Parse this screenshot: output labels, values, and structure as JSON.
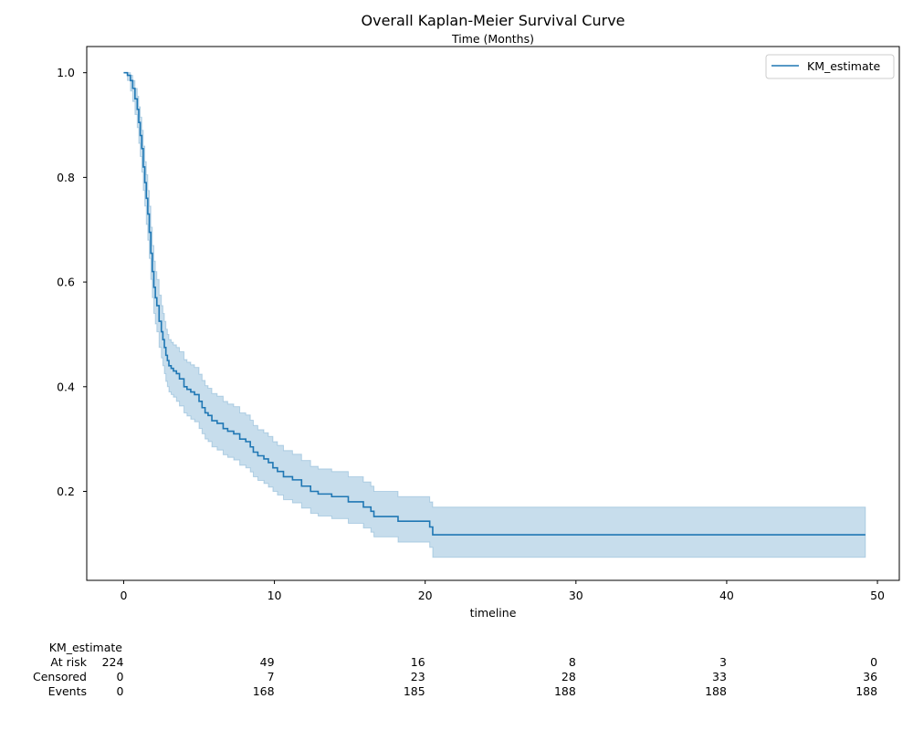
{
  "chart_data": {
    "type": "line",
    "title": "Overall Kaplan-Meier Survival Curve",
    "subtitle": "Time (Months)",
    "xlabel": "timeline",
    "ylabel": "",
    "xlim": [
      -2.45,
      51.45
    ],
    "ylim": [
      0.03,
      1.05
    ],
    "x_ticks": [
      0,
      10,
      20,
      30,
      40,
      50
    ],
    "y_ticks": [
      0.2,
      0.4,
      0.6,
      0.8,
      1.0
    ],
    "x_tick_labels": [
      "0",
      "10",
      "20",
      "30",
      "40",
      "50"
    ],
    "y_tick_labels": [
      "0.2",
      "0.4",
      "0.6",
      "0.8",
      "1.0"
    ],
    "grid": false,
    "legend": {
      "position": "top-right",
      "entries": [
        "KM_estimate"
      ]
    },
    "colors": {
      "line": "#1f77b4",
      "band": "#1f77b4"
    },
    "series": [
      {
        "name": "KM_estimate",
        "interpolation": "step-post",
        "x": [
          0,
          0.25,
          0.45,
          0.6,
          0.75,
          0.9,
          1.0,
          1.1,
          1.2,
          1.3,
          1.4,
          1.5,
          1.6,
          1.7,
          1.8,
          1.9,
          2.0,
          2.1,
          2.2,
          2.35,
          2.5,
          2.6,
          2.7,
          2.8,
          2.9,
          3.0,
          3.15,
          3.3,
          3.5,
          3.7,
          4.0,
          4.2,
          4.45,
          4.7,
          5.0,
          5.2,
          5.4,
          5.6,
          5.85,
          6.2,
          6.6,
          6.9,
          7.3,
          7.7,
          8.1,
          8.4,
          8.6,
          8.9,
          9.3,
          9.6,
          9.9,
          10.2,
          10.6,
          11.2,
          11.8,
          12.4,
          12.9,
          13.8,
          14.9,
          15.9,
          16.4,
          16.6,
          18.2,
          20.3,
          20.5,
          49.2
        ],
        "y": [
          1.0,
          0.995,
          0.985,
          0.97,
          0.95,
          0.93,
          0.905,
          0.88,
          0.855,
          0.82,
          0.79,
          0.76,
          0.73,
          0.695,
          0.655,
          0.62,
          0.59,
          0.57,
          0.555,
          0.525,
          0.505,
          0.49,
          0.475,
          0.46,
          0.45,
          0.44,
          0.435,
          0.43,
          0.425,
          0.415,
          0.4,
          0.395,
          0.39,
          0.385,
          0.372,
          0.36,
          0.35,
          0.345,
          0.335,
          0.33,
          0.32,
          0.315,
          0.31,
          0.3,
          0.295,
          0.285,
          0.275,
          0.268,
          0.262,
          0.255,
          0.245,
          0.238,
          0.228,
          0.222,
          0.21,
          0.2,
          0.195,
          0.19,
          0.18,
          0.17,
          0.162,
          0.152,
          0.143,
          0.132,
          0.117,
          0.117
        ],
        "ci_lower": [
          1.0,
          0.985,
          0.965,
          0.945,
          0.92,
          0.895,
          0.865,
          0.84,
          0.81,
          0.775,
          0.745,
          0.71,
          0.68,
          0.645,
          0.605,
          0.57,
          0.54,
          0.52,
          0.505,
          0.475,
          0.455,
          0.44,
          0.425,
          0.41,
          0.4,
          0.39,
          0.385,
          0.38,
          0.372,
          0.363,
          0.35,
          0.344,
          0.338,
          0.333,
          0.32,
          0.31,
          0.3,
          0.295,
          0.285,
          0.279,
          0.27,
          0.265,
          0.26,
          0.25,
          0.245,
          0.237,
          0.228,
          0.221,
          0.215,
          0.208,
          0.2,
          0.193,
          0.184,
          0.178,
          0.168,
          0.158,
          0.153,
          0.148,
          0.139,
          0.13,
          0.122,
          0.113,
          0.103,
          0.093,
          0.074,
          0.074
        ],
        "ci_upper": [
          1.0,
          1.0,
          0.995,
          0.985,
          0.97,
          0.955,
          0.935,
          0.915,
          0.89,
          0.86,
          0.83,
          0.805,
          0.775,
          0.745,
          0.705,
          0.67,
          0.64,
          0.62,
          0.605,
          0.575,
          0.555,
          0.54,
          0.525,
          0.51,
          0.5,
          0.49,
          0.485,
          0.48,
          0.475,
          0.467,
          0.452,
          0.447,
          0.442,
          0.437,
          0.424,
          0.412,
          0.402,
          0.397,
          0.387,
          0.382,
          0.372,
          0.367,
          0.362,
          0.35,
          0.346,
          0.336,
          0.326,
          0.318,
          0.312,
          0.305,
          0.295,
          0.288,
          0.278,
          0.271,
          0.259,
          0.248,
          0.243,
          0.238,
          0.228,
          0.218,
          0.21,
          0.2,
          0.19,
          0.18,
          0.17,
          0.17
        ]
      }
    ],
    "at_risk_table": {
      "group_label": "KM_estimate",
      "rows": [
        {
          "label": "At risk",
          "values": [
            "224",
            "49",
            "16",
            "8",
            "3",
            "0"
          ]
        },
        {
          "label": "Censored",
          "values": [
            "0",
            "7",
            "23",
            "28",
            "33",
            "36"
          ]
        },
        {
          "label": "Events",
          "values": [
            "0",
            "168",
            "185",
            "188",
            "188",
            "188"
          ]
        }
      ]
    }
  }
}
